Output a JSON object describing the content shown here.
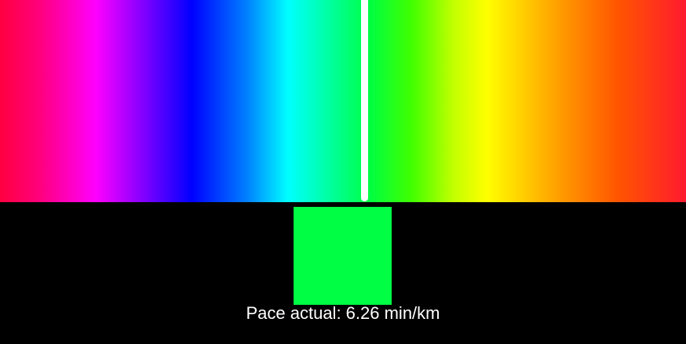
{
  "pace": {
    "label": "Pace actual: 6.26 min/km"
  },
  "slider": {
    "value": 0.532,
    "marker_color": "#ffffff"
  },
  "swatch": {
    "color": "#00ff44"
  },
  "colors": {
    "background": "#000000",
    "text": "#ffffff"
  }
}
